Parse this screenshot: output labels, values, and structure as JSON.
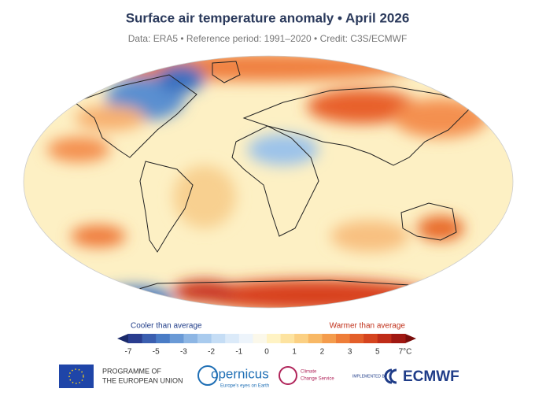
{
  "header": {
    "title": "Surface air temperature anomaly • April 2026",
    "subtitle": "Data: ERA5 • Reference period: 1991–2020 • Credit: C3S/ECMWF"
  },
  "legend": {
    "cooler": "Cooler than average",
    "warmer": "Warmer than average",
    "ticks": [
      "-7",
      "-5",
      "-3",
      "-2",
      "-1",
      "0",
      "1",
      "2",
      "3",
      "5",
      "7°C"
    ]
  },
  "footer": {
    "eu_line1": "PROGRAMME OF",
    "eu_line2": "THE EUROPEAN UNION",
    "copernicus": "opernicus",
    "copernicus_tagline": "Europe's eyes on Earth",
    "climate_line1": "Climate",
    "climate_line2": "Change Service",
    "implemented": "IMPLEMENTED BY",
    "ecmwf": "ECMWF"
  }
}
